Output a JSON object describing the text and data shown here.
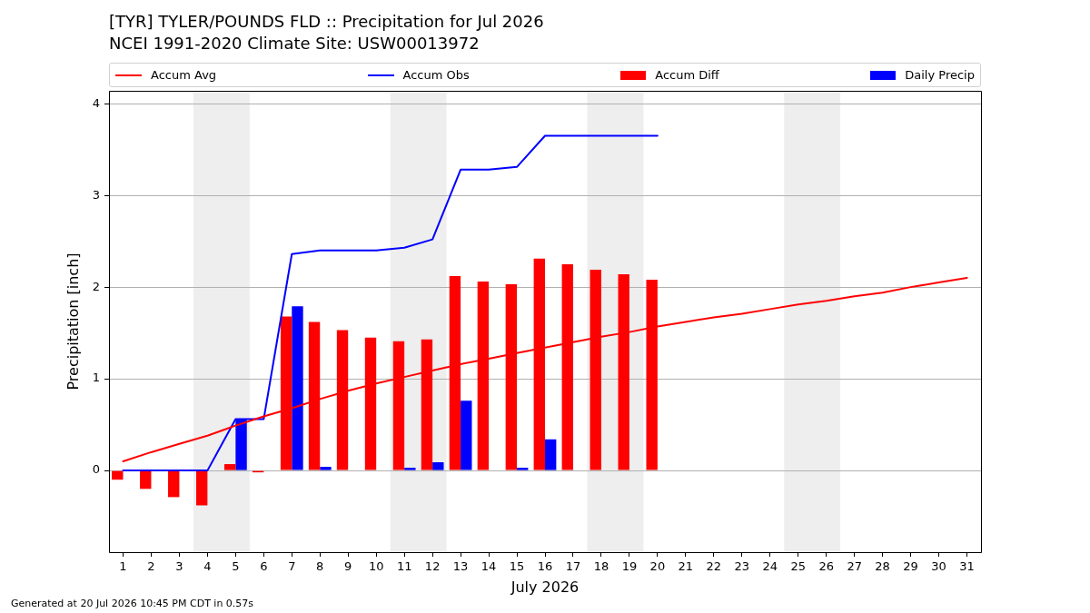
{
  "chart_data": {
    "type": "bar",
    "title": "[TYR] TYLER/POUNDS FLD :: Precipitation for Jul 2026",
    "subtitle": "NCEI 1991-2020 Climate Site: USW00013972",
    "xlabel": "July 2026",
    "ylabel": "Precipitation [inch]",
    "annotations": [
      "Generated at 20 Jul 2026 10:45 PM CDT in 0.57s"
    ],
    "x": [
      1,
      2,
      3,
      4,
      5,
      6,
      7,
      8,
      9,
      10,
      11,
      12,
      13,
      14,
      15,
      16,
      17,
      18,
      19,
      20,
      21,
      22,
      23,
      24,
      25,
      26,
      27,
      28,
      29,
      30,
      31
    ],
    "series": [
      {
        "name": "Accum Avg",
        "type": "line",
        "color": "#ff0000",
        "values": [
          0.1,
          0.2,
          0.29,
          0.38,
          0.49,
          0.59,
          0.68,
          0.78,
          0.87,
          0.95,
          1.02,
          1.09,
          1.16,
          1.22,
          1.28,
          1.34,
          1.4,
          1.46,
          1.51,
          1.57,
          1.62,
          1.67,
          1.71,
          1.76,
          1.81,
          1.85,
          1.9,
          1.94,
          2.0,
          2.05,
          2.1
        ]
      },
      {
        "name": "Accum Obs",
        "type": "line",
        "color": "#0000ff",
        "values": [
          0,
          0,
          0,
          0,
          0.56,
          0.56,
          2.36,
          2.4,
          2.4,
          2.4,
          2.43,
          2.52,
          3.28,
          3.28,
          3.31,
          3.65,
          3.65,
          3.65,
          3.65,
          3.65,
          null,
          null,
          null,
          null,
          null,
          null,
          null,
          null,
          null,
          null,
          null
        ]
      },
      {
        "name": "Accum Diff",
        "color": "#ff0000",
        "values": [
          -0.1,
          -0.2,
          -0.29,
          -0.38,
          0.07,
          -0.02,
          1.68,
          1.62,
          1.53,
          1.45,
          1.41,
          1.43,
          2.12,
          2.06,
          2.03,
          2.31,
          2.25,
          2.19,
          2.14,
          2.08,
          null,
          null,
          null,
          null,
          null,
          null,
          null,
          null,
          null,
          null,
          null
        ]
      },
      {
        "name": "Daily Precip",
        "color": "#0000ff",
        "values": [
          0,
          0,
          0,
          0,
          0.56,
          0,
          1.79,
          0.04,
          0,
          0,
          0.03,
          0.09,
          0.76,
          0,
          0.03,
          0.34,
          0,
          0,
          0,
          0,
          null,
          null,
          null,
          null,
          null,
          null,
          null,
          null,
          null,
          null,
          null
        ]
      }
    ],
    "xlim": [
      0.5,
      31.5
    ],
    "xticks": [
      1,
      2,
      3,
      4,
      5,
      6,
      7,
      8,
      9,
      10,
      11,
      12,
      13,
      14,
      15,
      16,
      17,
      18,
      19,
      20,
      21,
      22,
      23,
      24,
      25,
      26,
      27,
      28,
      29,
      30,
      31
    ],
    "ylim": [
      -0.89,
      4.14
    ],
    "yticks": [
      0,
      1,
      2,
      3,
      4
    ],
    "bands": [
      {
        "axis": "x",
        "from": 3.5,
        "to": 5.5,
        "color": "#eeeeee"
      },
      {
        "axis": "x",
        "from": 10.5,
        "to": 12.5,
        "color": "#eeeeee"
      },
      {
        "axis": "x",
        "from": 17.5,
        "to": 19.5,
        "color": "#eeeeee"
      },
      {
        "axis": "x",
        "from": 24.5,
        "to": 26.5,
        "color": "#eeeeee"
      }
    ],
    "grid": "y",
    "legend": "top",
    "marker": "none"
  }
}
